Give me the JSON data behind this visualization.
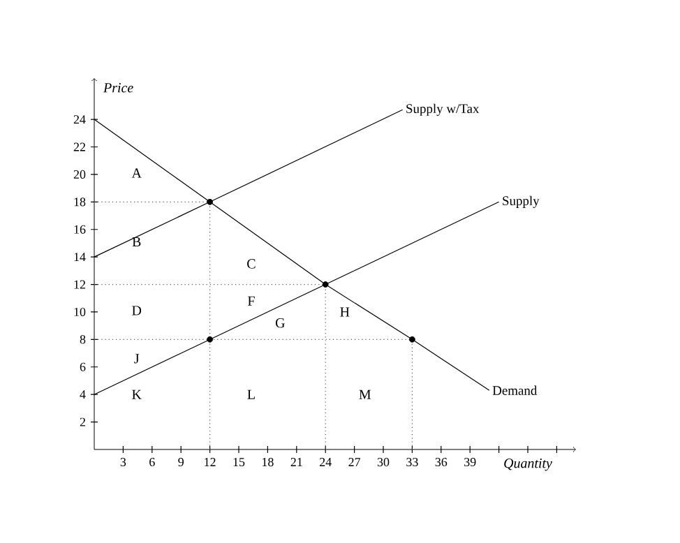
{
  "chart_data": {
    "type": "line",
    "xlabel": "Quantity",
    "ylabel": "Price",
    "xlim": [
      0,
      50
    ],
    "ylim": [
      0,
      27
    ],
    "xticks": [
      3,
      6,
      9,
      12,
      15,
      18,
      21,
      24,
      27,
      30,
      33,
      36,
      39,
      {
        "value": 42,
        "label": null
      },
      {
        "value": 45,
        "label": null
      },
      {
        "value": 48,
        "label": null
      }
    ],
    "yticks": [
      2,
      4,
      6,
      8,
      10,
      12,
      14,
      16,
      18,
      20,
      22,
      24
    ],
    "series": [
      {
        "name": "Supply w/Tax",
        "color": "#000000",
        "x": [
          0,
          12,
          32
        ],
        "values": [
          14,
          18,
          24.7
        ]
      },
      {
        "name": "Supply",
        "color": "#000000",
        "x": [
          0,
          12,
          24,
          42
        ],
        "values": [
          4,
          8,
          12,
          18
        ]
      },
      {
        "name": "Demand",
        "color": "#000000",
        "x": [
          0,
          12,
          24,
          33,
          41
        ],
        "values": [
          24,
          18,
          12,
          8,
          4.3
        ]
      },
      {
        "color": "#555555",
        "line_style": "dotted",
        "x": [
          0,
          12
        ],
        "values": [
          18,
          18
        ]
      },
      {
        "color": "#555555",
        "line_style": "dotted",
        "x": [
          12,
          12
        ],
        "values": [
          0,
          18
        ]
      },
      {
        "color": "#555555",
        "line_style": "dotted",
        "x": [
          0,
          24
        ],
        "values": [
          12,
          12
        ]
      },
      {
        "color": "#555555",
        "line_style": "dotted",
        "x": [
          24,
          24
        ],
        "values": [
          0,
          12
        ]
      },
      {
        "color": "#555555",
        "line_style": "dotted",
        "x": [
          0,
          33
        ],
        "values": [
          8,
          8
        ]
      },
      {
        "color": "#555555",
        "line_style": "dotted",
        "x": [
          33,
          33
        ],
        "values": [
          0,
          8
        ]
      },
      {
        "type": "scatter",
        "color": "#000000",
        "marker": "circle",
        "x": [
          12,
          24,
          12,
          33
        ],
        "values": [
          18,
          12,
          8,
          8
        ]
      }
    ],
    "annotations": [
      "A",
      "B",
      "C",
      "D",
      "F",
      "G",
      "H",
      "J",
      "K",
      "L",
      "M"
    ]
  }
}
